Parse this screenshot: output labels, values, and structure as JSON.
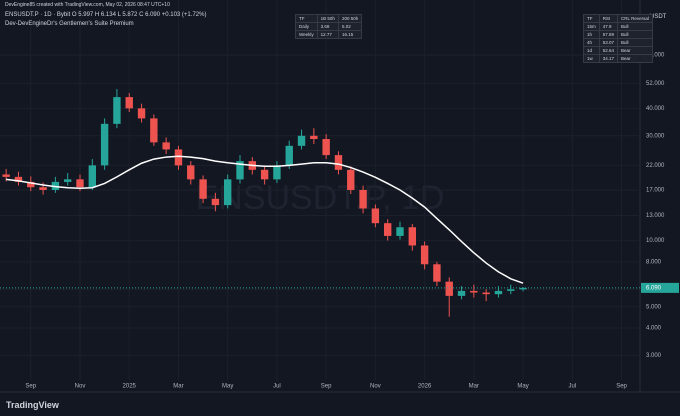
{
  "ui": {
    "credit": "DevEngine85 created with TradingView.com, May 02, 2026 08:47 UTC+10",
    "symbol_line": "ENSUSDT.P · 1D · Bybit  O 5.997 H 6.134 L 5.872 C 6.090 +0.103 (+1.72%)",
    "indicator": "Dev-DevEngineDr's Gentlemen's Suite Premium",
    "watermark": "ENSUSDT.P, 1D",
    "currency": "USDT",
    "last_price_label": "6.090",
    "logo": "TradingView",
    "center_table": {
      "header": [
        "TF",
        "1B 50h",
        "200 50h"
      ],
      "rows": [
        [
          "Daily",
          "3.68",
          "5.02"
        ],
        [
          "Weekly",
          "12.77",
          "16.15"
        ]
      ]
    },
    "right_table": {
      "header": [
        "TF",
        "RSI",
        "CRL Reversal"
      ],
      "rows": [
        [
          "15m",
          "47.9",
          "Bull"
        ],
        [
          "1h",
          "57.89",
          "Bull"
        ],
        [
          "4h",
          "53.07",
          "Bull"
        ],
        [
          "1d",
          "52.64",
          "Bear"
        ],
        [
          "1w",
          "34.17",
          "Bear"
        ]
      ]
    }
  },
  "chart_data": {
    "type": "candlestick",
    "categories": [
      null,
      null,
      "Sep",
      null,
      null,
      null,
      "Nov",
      null,
      null,
      null,
      "2025",
      null,
      null,
      null,
      "Mar",
      null,
      null,
      null,
      "May",
      null,
      null,
      null,
      "Jul",
      null,
      null,
      null,
      "Sep",
      null,
      null,
      null,
      "Nov",
      null,
      null,
      null,
      "2026",
      null,
      null,
      null,
      "Mar",
      null,
      null,
      null,
      "May",
      null,
      null,
      null,
      "Jul",
      null,
      null,
      null,
      "Sep",
      null
    ],
    "open": [
      20,
      19.5,
      18.5,
      17.5,
      17.0,
      18.5,
      19.0,
      17.5,
      22.0,
      34.0,
      45.0,
      40.0,
      36.0,
      28.0,
      26.0,
      22.0,
      19.0,
      15.5,
      14.5,
      19.0,
      23.0,
      21.0,
      19.0,
      22.0,
      27.0,
      30.0,
      29.0,
      24.5,
      21.0,
      17.0,
      14.0,
      12.0,
      10.5,
      11.5,
      9.5,
      7.8,
      6.5,
      5.6,
      5.9,
      5.8,
      5.7,
      5.9,
      5.997,
      null,
      null,
      null,
      null,
      null,
      null,
      null,
      null,
      null
    ],
    "high": [
      21.2,
      20.6,
      19.6,
      18.4,
      19.5,
      20.3,
      20.0,
      23.5,
      36.0,
      49.0,
      47.0,
      42.0,
      37.5,
      29.5,
      27.0,
      23.0,
      19.8,
      16.5,
      20.0,
      24.5,
      24.0,
      22.0,
      23.0,
      28.5,
      32.0,
      32.5,
      30.5,
      25.5,
      21.8,
      17.8,
      14.6,
      12.5,
      12.2,
      11.9,
      9.9,
      8.0,
      6.8,
      6.2,
      6.3,
      6.0,
      6.2,
      6.3,
      6.134,
      null,
      null,
      null,
      null,
      null,
      null,
      null,
      null,
      null
    ],
    "low": [
      18.6,
      17.8,
      16.8,
      16.2,
      16.5,
      17.8,
      16.8,
      17.0,
      21.0,
      32.5,
      38.5,
      34.5,
      27.0,
      24.8,
      21.0,
      18.0,
      14.8,
      13.6,
      14.0,
      18.2,
      20.0,
      18.0,
      18.3,
      21.2,
      26.0,
      27.5,
      23.5,
      20.0,
      16.3,
      13.3,
      11.5,
      10.0,
      10.1,
      9.0,
      7.4,
      6.2,
      4.5,
      5.4,
      5.5,
      5.3,
      5.5,
      5.7,
      5.872,
      null,
      null,
      null,
      null,
      null,
      null,
      null,
      null,
      null
    ],
    "close": [
      19.5,
      18.5,
      17.5,
      17.0,
      18.5,
      19.0,
      17.5,
      22.0,
      34.0,
      45.0,
      40.0,
      36.0,
      28.0,
      26.0,
      22.0,
      19.0,
      15.5,
      14.5,
      19.0,
      23.0,
      21.0,
      19.0,
      22.0,
      27.0,
      30.0,
      29.0,
      24.5,
      21.0,
      17.0,
      14.0,
      12.0,
      10.5,
      11.5,
      9.5,
      7.8,
      6.5,
      5.6,
      5.9,
      5.8,
      5.7,
      5.9,
      6.0,
      6.09,
      null,
      null,
      null,
      null,
      null,
      null,
      null,
      null,
      null
    ],
    "up_color": "#26a69a",
    "down_color": "#ef5350",
    "overlay": {
      "color": "#ffffff",
      "values": [
        19,
        18.7,
        18.3,
        17.9,
        17.6,
        17.4,
        17.3,
        17.4,
        18.2,
        19.5,
        21,
        22.5,
        23.5,
        24,
        24.2,
        24,
        23.6,
        23,
        22.6,
        22.3,
        22,
        21.8,
        21.8,
        22,
        22.3,
        22.6,
        22.6,
        22.3,
        21.5,
        20.5,
        19.4,
        18.2,
        17.0,
        15.6,
        14.2,
        12.6,
        11.2,
        9.9,
        8.8,
        7.9,
        7.2,
        6.7,
        6.4,
        null,
        null,
        null,
        null,
        null,
        null,
        null,
        null,
        null
      ]
    },
    "log_scale": true,
    "ylim": [
      2.2,
      101
    ],
    "yticks": [
      {
        "value": 3,
        "label": "3.000"
      },
      {
        "value": 4,
        "label": "4.000"
      },
      {
        "value": 5,
        "label": "5.000"
      },
      {
        "value": 6,
        "label": "6.000"
      },
      {
        "value": 8,
        "label": "8.000"
      },
      {
        "value": 10,
        "label": "10.000"
      },
      {
        "value": 13,
        "label": "13.000"
      },
      {
        "value": 17,
        "label": "17.000"
      },
      {
        "value": 22,
        "label": "22.000"
      },
      {
        "value": 30,
        "label": "30.000"
      },
      {
        "value": 40,
        "label": "40.000"
      },
      {
        "value": 52,
        "label": "52.000"
      },
      {
        "value": 70,
        "label": "70.000"
      }
    ],
    "grid": true
  }
}
